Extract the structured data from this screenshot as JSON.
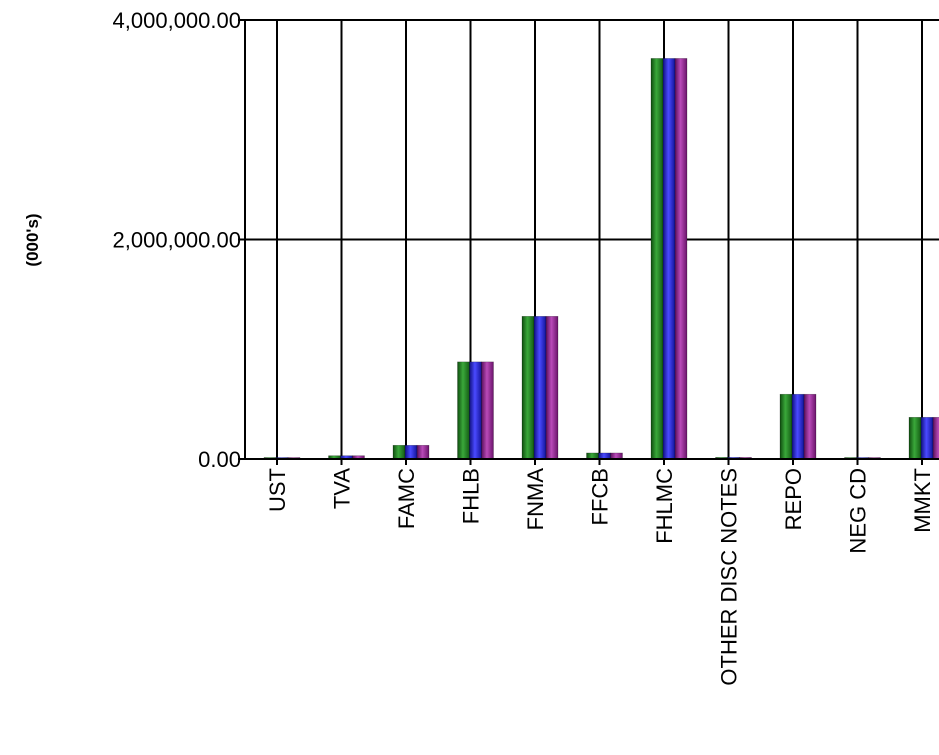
{
  "chart_data": {
    "type": "bar",
    "title": "",
    "xlabel": "",
    "ylabel": "(000's)",
    "ylim": [
      0,
      4000000
    ],
    "yticks": [
      "0.00",
      "2,000,000.00",
      "4,000,000.00"
    ],
    "grid": true,
    "categories": [
      "UST",
      "TVA",
      "FAMC",
      "FHLB",
      "FNMA",
      "FFCB",
      "FHLMC",
      "OTHER DISC NOTES",
      "REPO",
      "NEG CD",
      "MMKT"
    ],
    "series": [
      {
        "color": "#2e8b2e",
        "values": [
          10000,
          30000,
          125000,
          885000,
          1300000,
          55000,
          3650000,
          15000,
          590000,
          10000,
          380000
        ]
      },
      {
        "color": "#2a2ad8",
        "values": [
          10000,
          30000,
          125000,
          885000,
          1300000,
          55000,
          3650000,
          15000,
          590000,
          10000,
          380000
        ]
      },
      {
        "color": "#9b2e9b",
        "values": [
          10000,
          30000,
          125000,
          885000,
          1300000,
          55000,
          3650000,
          15000,
          590000,
          10000,
          380000
        ]
      }
    ]
  }
}
